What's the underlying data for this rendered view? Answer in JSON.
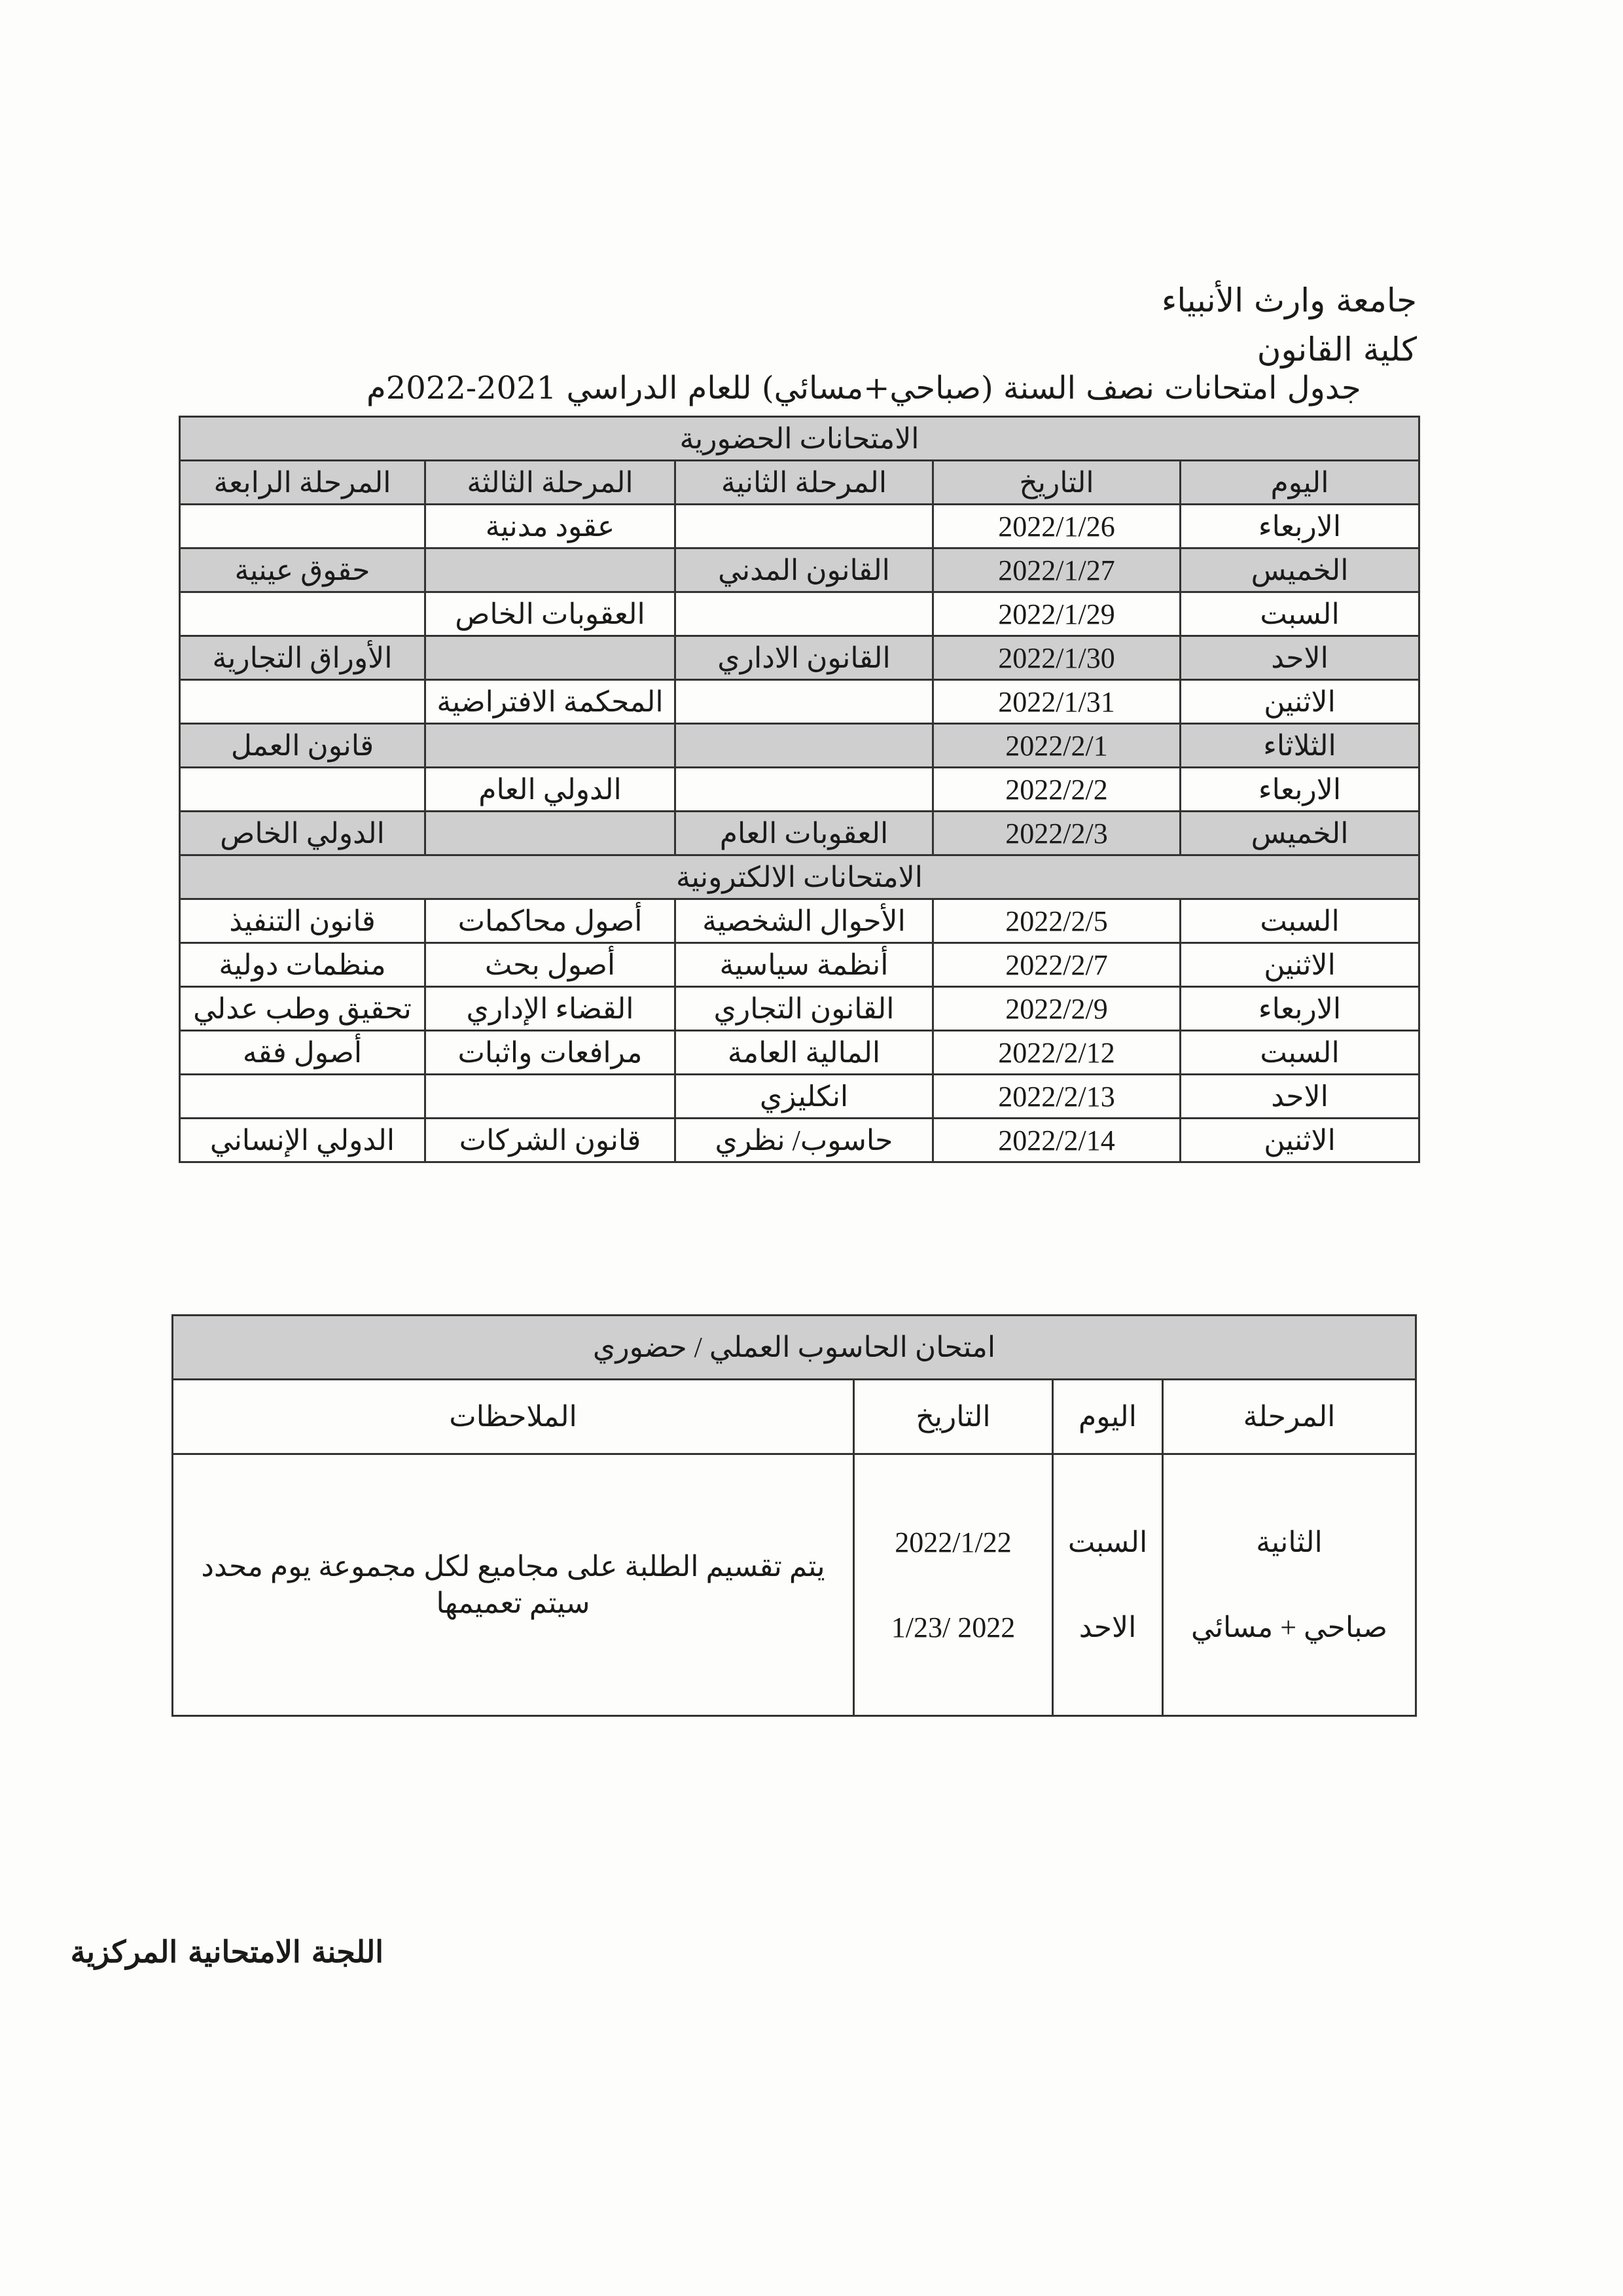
{
  "header": {
    "university": "جامعة وارث الأنبياء",
    "college": "كلية القانون",
    "title": "جدول امتحانات نصف السنة (صباحي+مسائي) للعام الدراسي 2021-2022م"
  },
  "schedule": {
    "in_person_title": "الامتحانات الحضورية",
    "columns": [
      "اليوم",
      "التاريخ",
      "المرحلة الثانية",
      "المرحلة الثالثة",
      "المرحلة الرابعة"
    ],
    "in_person_rows": [
      {
        "day": "الاربعاء",
        "date": "2022/1/26",
        "s2": "",
        "s3": "عقود مدنية",
        "s4": ""
      },
      {
        "day": "الخميس",
        "date": "2022/1/27",
        "s2": "القانون المدني",
        "s3": "",
        "s4": "حقوق عينية"
      },
      {
        "day": "السبت",
        "date": "2022/1/29",
        "s2": "",
        "s3": "العقوبات الخاص",
        "s4": ""
      },
      {
        "day": "الاحد",
        "date": "2022/1/30",
        "s2": "القانون الاداري",
        "s3": "",
        "s4": "الأوراق التجارية"
      },
      {
        "day": "الاثنين",
        "date": "2022/1/31",
        "s2": "",
        "s3": "المحكمة الافتراضية",
        "s4": ""
      },
      {
        "day": "الثلاثاء",
        "date": "2022/2/1",
        "s2": "",
        "s3": "",
        "s4": "قانون العمل"
      },
      {
        "day": "الاربعاء",
        "date": "2022/2/2",
        "s2": "",
        "s3": "الدولي العام",
        "s4": ""
      },
      {
        "day": "الخميس",
        "date": "2022/2/3",
        "s2": "العقوبات العام",
        "s3": "",
        "s4": "الدولي الخاص"
      }
    ],
    "electronic_title": "الامتحانات الالكترونية",
    "electronic_rows": [
      {
        "day": "السبت",
        "date": "2022/2/5",
        "s2": "الأحوال الشخصية",
        "s3": "أصول محاكمات",
        "s4": "قانون التنفيذ"
      },
      {
        "day": "الاثنين",
        "date": "2022/2/7",
        "s2": "أنظمة سياسية",
        "s3": "أصول بحث",
        "s4": "منظمات دولية"
      },
      {
        "day": "الاربعاء",
        "date": "2022/2/9",
        "s2": "القانون التجاري",
        "s3": "القضاء الإداري",
        "s4": "تحقيق وطب عدلي"
      },
      {
        "day": "السبت",
        "date": "2022/2/12",
        "s2": "المالية العامة",
        "s3": "مرافعات واثبات",
        "s4": "أصول فقه"
      },
      {
        "day": "الاحد",
        "date": "2022/2/13",
        "s2": "انكليزي",
        "s3": "",
        "s4": ""
      },
      {
        "day": "الاثنين",
        "date": "2022/2/14",
        "s2": "حاسوب/ نظري",
        "s3": "قانون الشركات",
        "s4": "الدولي الإنساني"
      }
    ]
  },
  "practical": {
    "title": "امتحان الحاسوب العملي / حضوري",
    "columns": [
      "المرحلة",
      "اليوم",
      "التاريخ",
      "الملاحظات"
    ],
    "stage": [
      "الثانية",
      "صباحي + مسائي"
    ],
    "days": [
      "السبت",
      "الاحد"
    ],
    "dates": [
      "2022/1/22",
      "2022 /1/23"
    ],
    "notes": [
      "يتم تقسيم الطلبة على مجاميع لكل مجموعة يوم محدد",
      "سيتم تعميمها"
    ]
  },
  "signature": "اللجنة الامتحانية المركزية"
}
